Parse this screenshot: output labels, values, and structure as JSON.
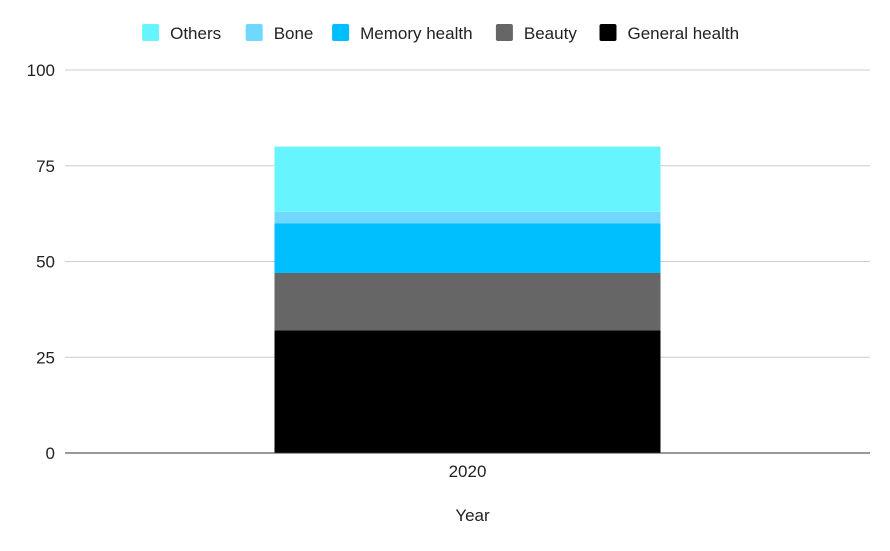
{
  "chart_data": {
    "type": "bar",
    "stacked": true,
    "categories": [
      "2020"
    ],
    "xlabel": "Year",
    "ylabel": "",
    "ylim": [
      0,
      100
    ],
    "yticks": [
      0,
      25,
      50,
      75,
      100
    ],
    "grid": true,
    "legend_position": "top",
    "series": [
      {
        "name": "General health",
        "values": [
          32
        ],
        "color": "#000000"
      },
      {
        "name": "Beauty",
        "values": [
          15
        ],
        "color": "#666666"
      },
      {
        "name": "Memory health",
        "values": [
          13
        ],
        "color": "#00bfff"
      },
      {
        "name": "Bone",
        "values": [
          3
        ],
        "color": "#70d7ff"
      },
      {
        "name": "Others",
        "values": [
          17
        ],
        "color": "#66f5ff"
      }
    ],
    "legend_order": [
      "Others",
      "Bone",
      "Memory health",
      "Beauty",
      "General health"
    ]
  }
}
